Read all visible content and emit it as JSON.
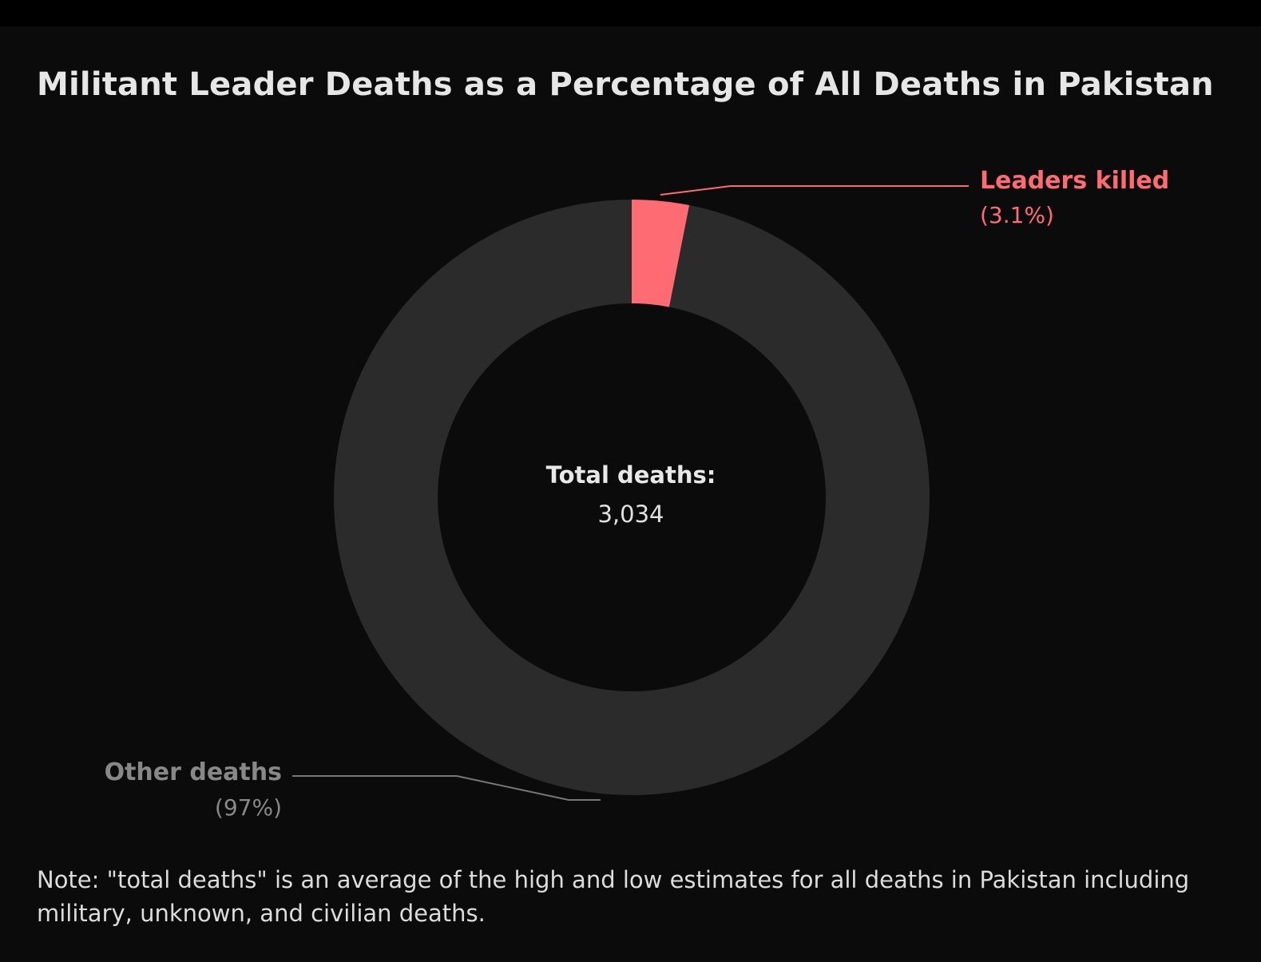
{
  "title": "Militant Leader Deaths as a Percentage of All Deaths in Pakistan",
  "center": {
    "label": "Total deaths:",
    "value": "3,034"
  },
  "note": "Note: \"total deaths\" is an average of the high and low estimates for all deaths in Pakistan including military, unknown, and civilian deaths.",
  "chart_data": {
    "type": "pie",
    "donut": true,
    "title": "Militant Leader Deaths as a Percentage of All Deaths in Pakistan",
    "total": 3034,
    "slices": [
      {
        "name": "Leaders killed",
        "value_label": "(3.1%)",
        "percent": 3.1,
        "color": "#ff6b73"
      },
      {
        "name": "Other deaths",
        "value_label": "(97%)",
        "percent": 96.9,
        "color": "#2b2b2b"
      }
    ],
    "label_colors": {
      "leaders": "#ff6b73",
      "other": "#888888"
    }
  },
  "colors": {
    "background": "#0b0b0b",
    "top_band": "#000000",
    "leader_line_leaders": "#ff6b73",
    "leader_line_other": "#777777"
  }
}
